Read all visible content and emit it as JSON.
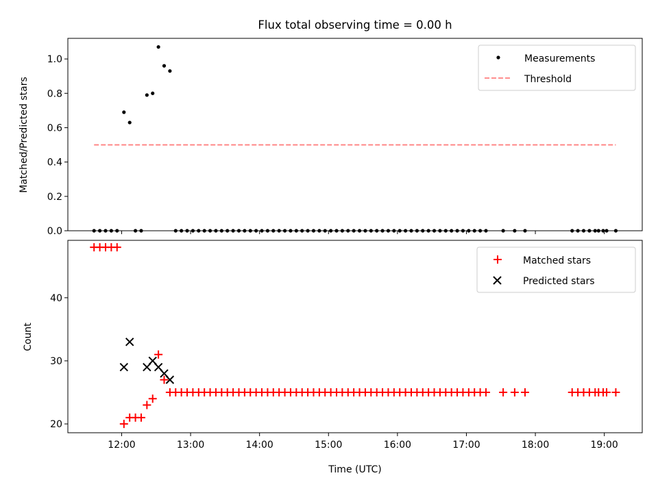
{
  "title": "Flux total observing time = 0.00 h",
  "chart_data": [
    {
      "type": "scatter",
      "xlabel": "",
      "ylabel": "Matched/Predicted stars",
      "xlim_hours": [
        11.22,
        19.55
      ],
      "ylim": [
        0,
        1.12
      ],
      "yticks": [
        "0.0",
        "0.2",
        "0.4",
        "0.6",
        "0.8",
        "1.0"
      ],
      "grid": false,
      "legend_position": "top-right",
      "legend": [
        "Measurements",
        "Threshold"
      ],
      "colors": {
        "measurements": "#000000",
        "threshold": "#ff7f7f"
      },
      "series": [
        {
          "name": "Measurements",
          "x": [
            "11:36",
            "11:41",
            "11:46",
            "11:51",
            "11:56",
            "12:02",
            "12:07",
            "12:12",
            "12:17",
            "12:22",
            "12:27",
            "12:32",
            "12:37",
            "12:42",
            "12:47",
            "12:52",
            "12:57",
            "13:02",
            "13:07",
            "13:12",
            "13:17",
            "13:22",
            "13:27",
            "13:32",
            "13:37",
            "13:42",
            "13:47",
            "13:52",
            "13:57",
            "14:02",
            "14:07",
            "14:12",
            "14:17",
            "14:22",
            "14:27",
            "14:32",
            "14:37",
            "14:42",
            "14:47",
            "14:52",
            "14:57",
            "15:02",
            "15:07",
            "15:12",
            "15:17",
            "15:22",
            "15:27",
            "15:32",
            "15:37",
            "15:42",
            "15:47",
            "15:52",
            "15:57",
            "16:02",
            "16:07",
            "16:12",
            "16:17",
            "16:22",
            "16:27",
            "16:32",
            "16:37",
            "16:42",
            "16:47",
            "16:52",
            "16:57",
            "17:02",
            "17:07",
            "17:12",
            "17:17",
            "17:32",
            "17:42",
            "17:51",
            "18:32",
            "18:37",
            "18:42",
            "18:47",
            "18:52",
            "18:55",
            "18:59",
            "19:02",
            "19:10"
          ],
          "y": [
            0,
            0,
            0,
            0,
            0,
            0.69,
            0.63,
            0,
            0,
            0.79,
            0.8,
            1.07,
            0.96,
            0.93,
            0,
            0,
            0,
            0,
            0,
            0,
            0,
            0,
            0,
            0,
            0,
            0,
            0,
            0,
            0,
            0,
            0,
            0,
            0,
            0,
            0,
            0,
            0,
            0,
            0,
            0,
            0,
            0,
            0,
            0,
            0,
            0,
            0,
            0,
            0,
            0,
            0,
            0,
            0,
            0,
            0,
            0,
            0,
            0,
            0,
            0,
            0,
            0,
            0,
            0,
            0,
            0,
            0,
            0,
            0,
            0,
            0,
            0,
            0,
            0,
            0,
            0,
            0,
            0,
            0,
            0,
            0
          ]
        },
        {
          "name": "Threshold",
          "x": [
            "11:36",
            "19:10"
          ],
          "y": [
            0.5,
            0.5
          ]
        }
      ]
    },
    {
      "type": "scatter",
      "xlabel": "Time (UTC)",
      "ylabel": "Count",
      "xlim_hours": [
        11.22,
        19.55
      ],
      "ylim": [
        18.6,
        49.1
      ],
      "yticks": [
        "20",
        "30",
        "40"
      ],
      "xticks": [
        "12:00",
        "13:00",
        "14:00",
        "15:00",
        "16:00",
        "17:00",
        "18:00",
        "19:00"
      ],
      "grid": false,
      "legend_position": "top-right",
      "legend": [
        "Matched stars",
        "Predicted stars"
      ],
      "colors": {
        "matched": "#ff0000",
        "predicted": "#000000"
      },
      "series": [
        {
          "name": "Matched stars",
          "x": [
            "11:36",
            "11:41",
            "11:46",
            "11:51",
            "11:56",
            "12:02",
            "12:07",
            "12:12",
            "12:17",
            "12:22",
            "12:27",
            "12:32",
            "12:37",
            "12:42",
            "12:47",
            "12:52",
            "12:57",
            "13:02",
            "13:07",
            "13:12",
            "13:17",
            "13:22",
            "13:27",
            "13:32",
            "13:37",
            "13:42",
            "13:47",
            "13:52",
            "13:57",
            "14:02",
            "14:07",
            "14:12",
            "14:17",
            "14:22",
            "14:27",
            "14:32",
            "14:37",
            "14:42",
            "14:47",
            "14:52",
            "14:57",
            "15:02",
            "15:07",
            "15:12",
            "15:17",
            "15:22",
            "15:27",
            "15:32",
            "15:37",
            "15:42",
            "15:47",
            "15:52",
            "15:57",
            "16:02",
            "16:07",
            "16:12",
            "16:17",
            "16:22",
            "16:27",
            "16:32",
            "16:37",
            "16:42",
            "16:47",
            "16:52",
            "16:57",
            "17:02",
            "17:07",
            "17:12",
            "17:17",
            "17:32",
            "17:42",
            "17:51",
            "18:32",
            "18:37",
            "18:42",
            "18:47",
            "18:52",
            "18:55",
            "18:59",
            "19:02",
            "19:10"
          ],
          "y": [
            48,
            48,
            48,
            48,
            48,
            20,
            21,
            21,
            21,
            23,
            24,
            31,
            27,
            25,
            25,
            25,
            25,
            25,
            25,
            25,
            25,
            25,
            25,
            25,
            25,
            25,
            25,
            25,
            25,
            25,
            25,
            25,
            25,
            25,
            25,
            25,
            25,
            25,
            25,
            25,
            25,
            25,
            25,
            25,
            25,
            25,
            25,
            25,
            25,
            25,
            25,
            25,
            25,
            25,
            25,
            25,
            25,
            25,
            25,
            25,
            25,
            25,
            25,
            25,
            25,
            25,
            25,
            25,
            25,
            25,
            25,
            25,
            25,
            25,
            25,
            25,
            25,
            25,
            25,
            25,
            25
          ]
        },
        {
          "name": "Predicted stars",
          "x": [
            "12:02",
            "12:07",
            "12:22",
            "12:27",
            "12:32",
            "12:37",
            "12:42"
          ],
          "y": [
            29,
            33,
            29,
            30,
            29,
            28,
            27
          ]
        }
      ]
    }
  ]
}
